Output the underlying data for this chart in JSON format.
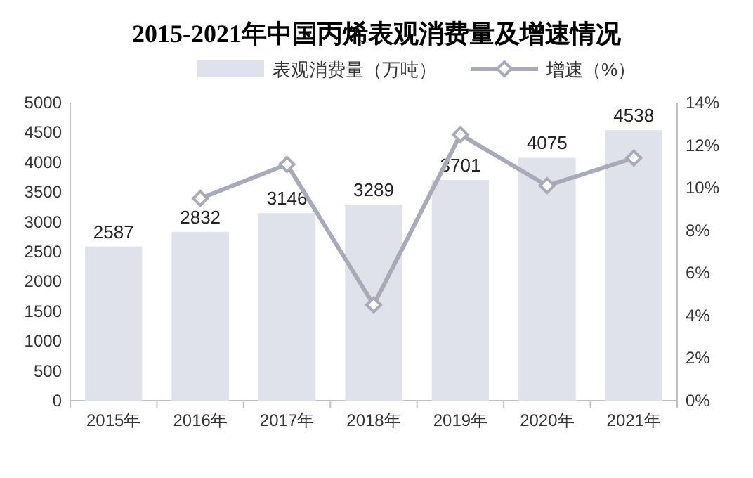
{
  "chart_data": {
    "type": "bar",
    "title": "2015-2021年中国丙烯表观消费量及增速情况",
    "categories": [
      "2015年",
      "2016年",
      "2017年",
      "2018年",
      "2019年",
      "2020年",
      "2021年"
    ],
    "series": [
      {
        "name": "表观消费量（万吨）",
        "color": "#dfe2ea",
        "values": [
          2587,
          2832,
          3146,
          3289,
          3701,
          4075,
          4538
        ],
        "data_labels": true
      },
      {
        "name": "增速（%）",
        "type": "line",
        "axis": "y2",
        "color": "#a9aab8",
        "marker": "diamond",
        "values": [
          null,
          9.5,
          11.1,
          4.5,
          12.5,
          10.1,
          11.4
        ]
      }
    ],
    "ylim": [
      0,
      5000
    ],
    "yticks": [
      0,
      500,
      1000,
      1500,
      2000,
      2500,
      3000,
      3500,
      4000,
      4500,
      5000
    ],
    "y2lim": [
      0,
      14
    ],
    "y2ticks": [
      {
        "value": 0,
        "label": "0%"
      },
      {
        "value": 2,
        "label": "2%"
      },
      {
        "value": 4,
        "label": "4%"
      },
      {
        "value": 6,
        "label": "6%"
      },
      {
        "value": 8,
        "label": "8%"
      },
      {
        "value": 10,
        "label": "10%"
      },
      {
        "value": 12,
        "label": "12%"
      },
      {
        "value": 14,
        "label": "14%"
      }
    ],
    "grid": false,
    "legend": "top"
  }
}
